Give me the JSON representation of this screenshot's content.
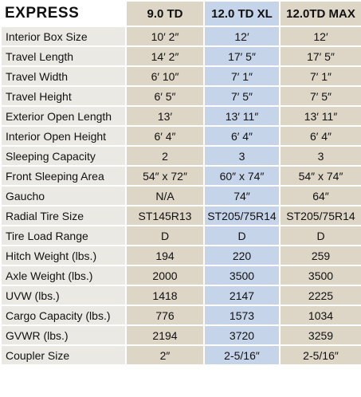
{
  "header": {
    "title": "EXPRESS",
    "columns": [
      "9.0 TD",
      "12.0 TD XL",
      "12.0TD MAX"
    ]
  },
  "table": {
    "rows": [
      [
        "Interior Box Size",
        "10′ 2″",
        "12′",
        "12′"
      ],
      [
        "Travel Length",
        "14′ 2″",
        "17′ 5″",
        "17′ 5″"
      ],
      [
        "Travel Width",
        "6′ 10″",
        "7′ 1″",
        "7′ 1″"
      ],
      [
        "Travel Height",
        "6′ 5″",
        "7′ 5″",
        "7′ 5″"
      ],
      [
        "Exterior Open Length",
        "13′",
        "13′ 11″",
        "13′ 11″"
      ],
      [
        "Interior Open Height",
        "6′ 4″",
        "6′ 4″",
        "6′ 4″"
      ],
      [
        "Sleeping Capacity",
        "2",
        "3",
        "3"
      ],
      [
        "Front Sleeping Area",
        "54″ x 72″",
        "60″ x 74″",
        "54″ x 74″"
      ],
      [
        "Gaucho",
        "N/A",
        "74″",
        "64″"
      ],
      [
        "Radial Tire Size",
        "ST145R13",
        "ST205/75R14",
        "ST205/75R14"
      ],
      [
        "Tire Load Range",
        "D",
        "D",
        "D"
      ],
      [
        "Hitch Weight (lbs.)",
        "194",
        "220",
        "259"
      ],
      [
        "Axle Weight (lbs.)",
        "2000",
        "3500",
        "3500"
      ],
      [
        "UVW (lbs.)",
        "1418",
        "2147",
        "2225"
      ],
      [
        "Cargo Capacity (lbs.)",
        "776",
        "1573",
        "1034"
      ],
      [
        "GVWR (lbs.)",
        "2194",
        "3720",
        "3259"
      ],
      [
        "Coupler Size",
        "2″",
        "2-5/16″",
        "2-5/16″"
      ]
    ]
  }
}
